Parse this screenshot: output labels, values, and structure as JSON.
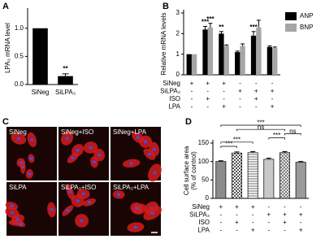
{
  "panel_labels": [
    "A",
    "B",
    "C",
    "D"
  ],
  "chart_data": [
    {
      "type": "bar",
      "ylabel": "LPA₃ mRNA level",
      "categories": [
        "SiNeg",
        "SiLPA₃"
      ],
      "values": [
        1.0,
        0.15
      ],
      "errors": [
        0,
        0.04
      ],
      "value_annotations": [
        null,
        "**"
      ],
      "color": "#000000",
      "ylim": [
        0,
        1.3
      ],
      "yticks": [
        {
          "value": 0,
          "label": "0.0"
        },
        {
          "value": 0.5,
          "label": "0.5"
        },
        {
          "value": 1.0,
          "label": "1.0"
        }
      ]
    },
    {
      "type": "grouped_bar",
      "ylabel": "Relative mRNA  levels",
      "categories": [
        null,
        null,
        null,
        null,
        null,
        null
      ],
      "series": [
        {
          "name": "ANP",
          "color": "#000000",
          "values": [
            1.0,
            2.2,
            2.0,
            1.1,
            1.9,
            1.35
          ],
          "errors": [
            0,
            0.15,
            0.1,
            0.05,
            0.2,
            0.05
          ],
          "value_annotations": [
            null,
            "***",
            "**",
            null,
            "***",
            null
          ]
        },
        {
          "name": "BNP",
          "color": "#a6a6a6",
          "values": [
            1.0,
            2.3,
            1.4,
            1.4,
            2.3,
            1.3
          ],
          "errors": [
            0,
            0.2,
            0.05,
            0.1,
            0.35,
            0.05
          ],
          "value_annotations": [
            null,
            "***",
            null,
            null,
            null,
            null
          ]
        }
      ],
      "conditions": [
        {
          "name": "SiNeg",
          "signs": [
            "+",
            "+",
            "+",
            "-",
            "-",
            "-"
          ]
        },
        {
          "name": "SiLPA₃",
          "signs": [
            "-",
            "-",
            "-",
            "+",
            "+",
            "+"
          ]
        },
        {
          "name": "ISO",
          "signs": [
            "-",
            "+",
            "-",
            "-",
            "+",
            "-"
          ]
        },
        {
          "name": "LPA",
          "signs": [
            "-",
            "-",
            "+",
            "-",
            "-",
            "+"
          ]
        }
      ],
      "ylim": [
        0,
        3
      ],
      "yticks": [
        0,
        1,
        2,
        3
      ],
      "legend": "upper right"
    },
    {
      "type": "pattern_bar",
      "ylabel": [
        "Cell surface area",
        "(% of control)"
      ],
      "categories": [
        null,
        null,
        null,
        null,
        null,
        null
      ],
      "values": [
        100,
        123,
        124,
        106,
        124,
        98
      ],
      "errors": [
        2,
        3,
        3,
        3,
        3,
        2
      ],
      "colors": [
        "#8c8c8c",
        "#e0e0e0",
        "#ffffff",
        "#c8c8c8",
        "#d0d0d0",
        "#9a9a9a"
      ],
      "patterns": [
        "solid",
        "checker",
        "hlines",
        "solid",
        "cross",
        "solid"
      ],
      "comparisons": [
        {
          "from": 0,
          "to": 1,
          "label": "***"
        },
        {
          "from": 0,
          "to": 2,
          "label": "***"
        },
        {
          "from": 3,
          "to": 4,
          "label": "***"
        },
        {
          "from": 4,
          "to": 5,
          "label": "ns"
        },
        {
          "from": 1,
          "to": 4,
          "label": "ns"
        },
        {
          "from": 0,
          "to": 5,
          "label": "***"
        }
      ],
      "conditions": [
        {
          "name": "SiNeg",
          "signs": [
            "+",
            "+",
            "+",
            "-",
            "-",
            "-"
          ]
        },
        {
          "name": "SiLPA₃",
          "signs": [
            "-",
            "-",
            "-",
            "+",
            "+",
            "+"
          ]
        },
        {
          "name": "ISO",
          "signs": [
            "-",
            "+",
            "-",
            "-",
            "+",
            "-"
          ]
        },
        {
          "name": "LPA",
          "signs": [
            "-",
            "-",
            "+",
            "-",
            "-",
            "+"
          ]
        }
      ],
      "ylim": [
        0,
        150
      ],
      "yticks": [
        0,
        50,
        100,
        150
      ]
    }
  ],
  "image_panel": {
    "labels": [
      "SiNeg",
      "SiNeg+ISO",
      "SiNeg+LPA",
      "SiLPA",
      "SiLPA₃+ISO",
      "SiLPA₃+LPA"
    ]
  }
}
